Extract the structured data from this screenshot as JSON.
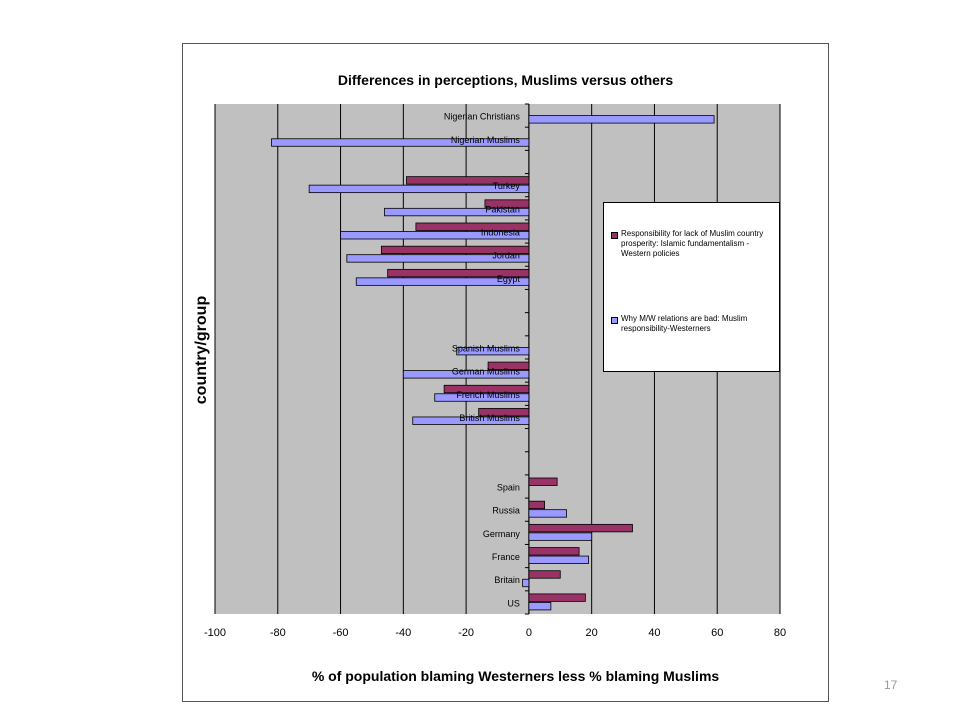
{
  "slide_number": "17",
  "colors": {
    "plot_bg": "#c0c0c0",
    "series1": "#993366",
    "series2": "#9999ff",
    "gridline": "#000000"
  },
  "chart_data": {
    "type": "bar",
    "orientation": "horizontal",
    "title": "Differences in perceptions, Muslims versus others",
    "xlabel": "% of population blaming Westerners less % blaming Muslims",
    "ylabel": "country/group",
    "xlim": [
      -100,
      80
    ],
    "xticks": [
      "-100",
      "-80",
      "-60",
      "-40",
      "-20",
      "0",
      "20",
      "40",
      "60",
      "80"
    ],
    "grid": true,
    "legend_position": "right",
    "categories": [
      "Nigerian Christians",
      "Nigerian Muslims",
      "",
      "Turkey",
      "Pakistan",
      "Indonesia",
      "Jordan",
      "Egypt",
      "",
      "",
      "Spanish Muslims",
      "German Muslims",
      "French Muslims",
      "British Muslims",
      "",
      "",
      "Spain",
      "Russia",
      "Germany",
      "France",
      "Britain",
      "US"
    ],
    "series": [
      {
        "name": "Responsibility for lack of Muslim country prosperity: Islamic fundamentalism - Western policies",
        "values": [
          null,
          null,
          null,
          -39,
          -14,
          -36,
          -47,
          -45,
          null,
          null,
          null,
          -13,
          -27,
          -16,
          null,
          null,
          9,
          5,
          33,
          16,
          10,
          18
        ]
      },
      {
        "name": "Why M/W relations are bad: Muslim responsibility-Westerners",
        "values": [
          59,
          -82,
          null,
          -70,
          -46,
          -60,
          -58,
          -55,
          null,
          null,
          -23,
          -40,
          -30,
          -37,
          null,
          null,
          null,
          12,
          20,
          19,
          -2,
          7
        ]
      }
    ]
  }
}
